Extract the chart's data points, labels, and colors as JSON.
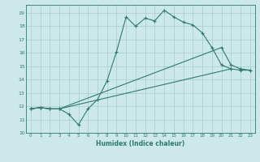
{
  "title": "",
  "xlabel": "Humidex (Indice chaleur)",
  "xlim": [
    -0.5,
    23.5
  ],
  "ylim": [
    10,
    19.6
  ],
  "xticks": [
    0,
    1,
    2,
    3,
    4,
    5,
    6,
    7,
    8,
    9,
    10,
    11,
    12,
    13,
    14,
    15,
    16,
    17,
    18,
    19,
    20,
    21,
    22,
    23
  ],
  "yticks": [
    10,
    11,
    12,
    13,
    14,
    15,
    16,
    17,
    18,
    19
  ],
  "background_color": "#cce8e8",
  "line_color": "#2e7b6e",
  "grid_color": "#a8cccc",
  "line1_x": [
    0,
    1,
    2,
    3,
    4,
    5,
    6,
    7,
    8,
    9,
    10,
    11,
    12,
    13,
    14,
    15,
    16,
    17,
    18,
    19,
    20,
    21
  ],
  "line1_y": [
    11.8,
    11.9,
    11.8,
    11.8,
    11.4,
    10.6,
    11.8,
    12.5,
    13.9,
    16.1,
    18.7,
    18.0,
    18.6,
    18.4,
    19.2,
    18.7,
    18.3,
    18.1,
    17.5,
    16.4,
    15.1,
    14.8
  ],
  "line2_x": [
    0,
    1,
    2,
    3,
    21,
    22,
    23
  ],
  "line2_y": [
    11.8,
    11.9,
    11.8,
    11.8,
    14.8,
    14.7,
    14.7
  ],
  "line3_x": [
    0,
    1,
    2,
    3,
    20,
    21,
    22,
    23
  ],
  "line3_y": [
    11.8,
    11.9,
    11.8,
    11.8,
    16.4,
    15.1,
    14.8,
    14.7
  ]
}
